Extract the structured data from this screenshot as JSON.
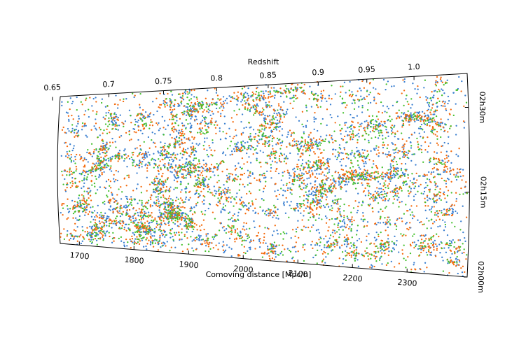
{
  "chart_data": {
    "type": "scatter",
    "xlabel": "Comoving distance [Mpc/h]",
    "top_label": "Redshift",
    "x_ticks": [
      1700,
      1800,
      1900,
      2000,
      2100,
      2200,
      2300
    ],
    "x_tick_labels": [
      "1700",
      "1800",
      "1900",
      "2000",
      "2100",
      "2200",
      "2300"
    ],
    "xlim": [
      1665,
      2410
    ],
    "redshift_ticks": [
      0.65,
      0.7,
      0.75,
      0.8,
      0.85,
      0.9,
      0.95,
      1.0
    ],
    "redshift_tick_labels": [
      "0.65",
      "0.7",
      "0.75",
      "0.8",
      "0.85",
      "0.9",
      "0.95",
      "1.0"
    ],
    "ra_ticks": [
      "02h00m",
      "02h15m",
      "02h30m"
    ],
    "ra_tick_values_min": [
      0,
      15,
      30
    ],
    "ra_lim_min": [
      0,
      36
    ],
    "grid": false,
    "series": [
      {
        "color": "#3a7fd0",
        "count": 2600
      },
      {
        "color": "#f46a0c",
        "count": 2300
      },
      {
        "color": "#44c02d",
        "count": 1500
      }
    ],
    "random_seed": 20210711
  }
}
